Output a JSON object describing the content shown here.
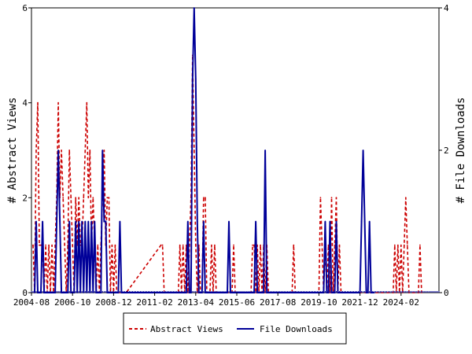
{
  "chart_data": {
    "type": "line",
    "title": "",
    "x_tick_labels": [
      "2004-08",
      "2006-10",
      "2008-12",
      "2011-02",
      "2013-04",
      "2015-06",
      "2017-08",
      "2019-10",
      "2021-12",
      "2024-02"
    ],
    "x_range": [
      "2004-08",
      "2026-02"
    ],
    "y_left": {
      "label": "# Abstract Views",
      "ticks": [
        "0",
        "2",
        "4",
        "6"
      ],
      "range": [
        0,
        6
      ]
    },
    "y_right": {
      "label": "# File Downloads",
      "ticks": [
        "0",
        "2",
        "4"
      ],
      "range": [
        0,
        4
      ]
    },
    "grid": false,
    "legend_position": "bottom",
    "series": [
      {
        "name": "Abstract Views",
        "axis": "left",
        "color": "#cc0000",
        "style": "dashed",
        "points": [
          [
            "2004-09",
            1
          ],
          [
            "2004-10",
            0
          ],
          [
            "2004-11",
            3
          ],
          [
            "2004-12",
            4
          ],
          [
            "2005-01",
            1
          ],
          [
            "2005-02",
            1
          ],
          [
            "2005-03",
            1
          ],
          [
            "2005-04",
            0
          ],
          [
            "2005-05",
            1
          ],
          [
            "2005-06",
            0
          ],
          [
            "2005-07",
            1
          ],
          [
            "2005-08",
            0
          ],
          [
            "2005-09",
            1
          ],
          [
            "2005-10",
            0
          ],
          [
            "2005-11",
            1
          ],
          [
            "2005-12",
            2
          ],
          [
            "2006-01",
            4
          ],
          [
            "2006-02",
            2
          ],
          [
            "2006-03",
            3
          ],
          [
            "2006-04",
            2
          ],
          [
            "2006-05",
            1
          ],
          [
            "2006-06",
            0
          ],
          [
            "2006-07",
            1
          ],
          [
            "2006-08",
            3
          ],
          [
            "2006-09",
            2
          ],
          [
            "2006-10",
            1
          ],
          [
            "2006-11",
            0
          ],
          [
            "2006-12",
            2
          ],
          [
            "2007-01",
            1
          ],
          [
            "2007-02",
            2
          ],
          [
            "2007-03",
            1
          ],
          [
            "2007-04",
            1
          ],
          [
            "2007-05",
            2
          ],
          [
            "2007-06",
            3
          ],
          [
            "2007-07",
            4
          ],
          [
            "2007-08",
            2
          ],
          [
            "2007-09",
            3
          ],
          [
            "2007-10",
            1
          ],
          [
            "2007-11",
            2
          ],
          [
            "2007-12",
            1
          ],
          [
            "2008-01",
            0
          ],
          [
            "2008-02",
            1
          ],
          [
            "2008-03",
            0
          ],
          [
            "2008-04",
            1
          ],
          [
            "2008-05",
            2
          ],
          [
            "2008-06",
            3
          ],
          [
            "2008-07",
            1
          ],
          [
            "2008-08",
            2
          ],
          [
            "2008-09",
            2
          ],
          [
            "2008-10",
            0
          ],
          [
            "2008-11",
            1
          ],
          [
            "2008-12",
            0
          ],
          [
            "2009-01",
            1
          ],
          [
            "2009-02",
            0
          ],
          [
            "2009-03",
            0
          ],
          [
            "2009-04",
            0
          ],
          [
            "2009-05",
            0
          ],
          [
            "2009-06",
            0
          ],
          [
            "2009-07",
            0
          ],
          [
            "2009-08",
            0
          ],
          [
            "2011-06",
            1
          ],
          [
            "2011-07",
            1
          ],
          [
            "2011-08",
            0
          ],
          [
            "2012-05",
            0
          ],
          [
            "2012-06",
            1
          ],
          [
            "2012-07",
            0
          ],
          [
            "2012-08",
            1
          ],
          [
            "2012-09",
            0
          ],
          [
            "2012-10",
            1
          ],
          [
            "2012-11",
            0
          ],
          [
            "2012-12",
            1
          ],
          [
            "2013-01",
            2
          ],
          [
            "2013-02",
            5
          ],
          [
            "2013-03",
            3
          ],
          [
            "2013-04",
            1
          ],
          [
            "2013-05",
            0
          ],
          [
            "2013-06",
            1
          ],
          [
            "2013-07",
            0
          ],
          [
            "2013-08",
            0
          ],
          [
            "2013-09",
            2
          ],
          [
            "2013-10",
            2
          ],
          [
            "2013-11",
            0
          ],
          [
            "2014-01",
            0
          ],
          [
            "2014-02",
            1
          ],
          [
            "2014-03",
            0
          ],
          [
            "2014-04",
            1
          ],
          [
            "2014-05",
            0
          ],
          [
            "2015-03",
            0
          ],
          [
            "2015-04",
            1
          ],
          [
            "2015-05",
            0
          ],
          [
            "2016-03",
            0
          ],
          [
            "2016-04",
            1
          ],
          [
            "2016-05",
            1
          ],
          [
            "2016-06",
            0
          ],
          [
            "2016-07",
            1
          ],
          [
            "2016-08",
            0
          ],
          [
            "2016-09",
            1
          ],
          [
            "2016-10",
            0
          ],
          [
            "2016-11",
            1
          ],
          [
            "2016-12",
            0
          ],
          [
            "2017-01",
            1
          ],
          [
            "2017-02",
            0
          ],
          [
            "2018-05",
            0
          ],
          [
            "2018-06",
            1
          ],
          [
            "2018-07",
            0
          ],
          [
            "2019-10",
            0
          ],
          [
            "2019-11",
            2
          ],
          [
            "2019-12",
            1
          ],
          [
            "2020-01",
            0
          ],
          [
            "2020-02",
            1
          ],
          [
            "2020-03",
            0
          ],
          [
            "2020-04",
            1
          ],
          [
            "2020-05",
            0
          ],
          [
            "2020-06",
            2
          ],
          [
            "2020-07",
            0
          ],
          [
            "2020-08",
            1
          ],
          [
            "2020-09",
            2
          ],
          [
            "2020-10",
            0
          ],
          [
            "2020-11",
            1
          ],
          [
            "2020-12",
            0
          ],
          [
            "2023-09",
            0
          ],
          [
            "2023-10",
            1
          ],
          [
            "2023-11",
            0
          ],
          [
            "2023-12",
            1
          ],
          [
            "2024-01",
            0
          ],
          [
            "2024-02",
            1
          ],
          [
            "2024-03",
            0
          ],
          [
            "2024-04",
            1
          ],
          [
            "2024-05",
            2
          ],
          [
            "2024-06",
            1
          ],
          [
            "2024-07",
            0
          ],
          [
            "2025-01",
            0
          ],
          [
            "2025-02",
            1
          ],
          [
            "2025-03",
            0
          ]
        ]
      },
      {
        "name": "File Downloads",
        "axis": "right",
        "color": "#000099",
        "style": "solid",
        "points": [
          [
            "2004-10",
            0
          ],
          [
            "2004-11",
            1
          ],
          [
            "2004-12",
            0
          ],
          [
            "2005-01",
            0
          ],
          [
            "2005-02",
            0
          ],
          [
            "2005-03",
            1
          ],
          [
            "2005-04",
            0
          ],
          [
            "2005-05",
            0
          ],
          [
            "2005-06",
            0
          ],
          [
            "2005-07",
            0
          ],
          [
            "2005-08",
            0
          ],
          [
            "2005-09",
            0
          ],
          [
            "2005-10",
            0
          ],
          [
            "2005-11",
            0
          ],
          [
            "2005-12",
            1
          ],
          [
            "2006-01",
            2
          ],
          [
            "2006-02",
            1
          ],
          [
            "2006-03",
            0
          ],
          [
            "2006-04",
            0
          ],
          [
            "2006-05",
            0
          ],
          [
            "2006-06",
            0
          ],
          [
            "2006-07",
            0
          ],
          [
            "2006-08",
            1
          ],
          [
            "2006-09",
            0
          ],
          [
            "2006-10",
            0
          ],
          [
            "2006-11",
            0
          ],
          [
            "2006-12",
            1
          ],
          [
            "2007-01",
            0
          ],
          [
            "2007-02",
            1
          ],
          [
            "2007-03",
            0
          ],
          [
            "2007-04",
            1
          ],
          [
            "2007-05",
            0
          ],
          [
            "2007-06",
            1
          ],
          [
            "2007-07",
            0
          ],
          [
            "2007-08",
            1
          ],
          [
            "2007-09",
            0
          ],
          [
            "2007-10",
            1
          ],
          [
            "2007-11",
            0
          ],
          [
            "2007-12",
            1
          ],
          [
            "2008-01",
            0
          ],
          [
            "2008-02",
            0
          ],
          [
            "2008-03",
            0
          ],
          [
            "2008-04",
            0
          ],
          [
            "2008-05",
            2
          ],
          [
            "2008-06",
            1
          ],
          [
            "2008-07",
            1
          ],
          [
            "2008-08",
            0
          ],
          [
            "2008-09",
            0
          ],
          [
            "2008-10",
            0
          ],
          [
            "2008-11",
            0
          ],
          [
            "2008-12",
            0
          ],
          [
            "2009-01",
            0
          ],
          [
            "2009-02",
            0
          ],
          [
            "2009-03",
            0
          ],
          [
            "2009-04",
            1
          ],
          [
            "2009-05",
            0
          ],
          [
            "2009-06",
            0
          ],
          [
            "2009-07",
            0
          ],
          [
            "2009-08",
            0
          ],
          [
            "2009-09",
            0
          ],
          [
            "2012-10",
            0
          ],
          [
            "2012-11",
            1
          ],
          [
            "2012-12",
            0
          ],
          [
            "2013-01",
            0
          ],
          [
            "2013-02",
            3
          ],
          [
            "2013-03",
            4
          ],
          [
            "2013-04",
            3
          ],
          [
            "2013-05",
            1
          ],
          [
            "2013-06",
            0
          ],
          [
            "2013-07",
            0
          ],
          [
            "2013-08",
            0
          ],
          [
            "2013-09",
            1
          ],
          [
            "2013-10",
            0
          ],
          [
            "2013-11",
            0
          ],
          [
            "2014-01",
            0
          ],
          [
            "2014-02",
            0
          ],
          [
            "2014-03",
            0
          ],
          [
            "2014-04",
            0
          ],
          [
            "2014-05",
            0
          ],
          [
            "2014-06",
            0
          ],
          [
            "2014-12",
            0
          ],
          [
            "2015-01",
            1
          ],
          [
            "2015-02",
            0
          ],
          [
            "2015-03",
            0
          ],
          [
            "2015-04",
            0
          ],
          [
            "2015-05",
            0
          ],
          [
            "2015-06",
            0
          ],
          [
            "2015-07",
            0
          ],
          [
            "2015-08",
            0
          ],
          [
            "2015-09",
            0
          ],
          [
            "2016-05",
            0
          ],
          [
            "2016-06",
            1
          ],
          [
            "2016-07",
            0
          ],
          [
            "2016-08",
            0
          ],
          [
            "2016-09",
            0
          ],
          [
            "2016-10",
            0
          ],
          [
            "2016-11",
            0
          ],
          [
            "2016-12",
            2
          ],
          [
            "2017-01",
            0
          ],
          [
            "2017-02",
            0
          ],
          [
            "2017-03",
            0
          ],
          [
            "2017-04",
            0
          ],
          [
            "2017-05",
            0
          ],
          [
            "2017-06",
            0
          ],
          [
            "2019-12",
            0
          ],
          [
            "2020-01",
            0
          ],
          [
            "2020-02",
            1
          ],
          [
            "2020-03",
            0
          ],
          [
            "2020-04",
            0
          ],
          [
            "2020-05",
            1
          ],
          [
            "2020-06",
            0
          ],
          [
            "2020-07",
            0
          ],
          [
            "2020-08",
            0
          ],
          [
            "2020-09",
            1
          ],
          [
            "2020-10",
            0
          ],
          [
            "2020-11",
            0
          ],
          [
            "2020-12",
            0
          ],
          [
            "2021-01",
            0
          ],
          [
            "2021-02",
            0
          ],
          [
            "2021-03",
            0
          ],
          [
            "2021-04",
            0
          ],
          [
            "2021-05",
            0
          ],
          [
            "2021-06",
            0
          ],
          [
            "2021-07",
            0
          ],
          [
            "2021-08",
            0
          ],
          [
            "2021-09",
            0
          ],
          [
            "2021-10",
            0
          ],
          [
            "2021-11",
            0
          ],
          [
            "2021-12",
            0
          ],
          [
            "2022-01",
            1
          ],
          [
            "2022-02",
            2
          ],
          [
            "2022-03",
            1
          ],
          [
            "2022-04",
            0
          ],
          [
            "2022-05",
            0
          ],
          [
            "2022-06",
            1
          ],
          [
            "2022-07",
            0
          ],
          [
            "2022-08",
            0
          ],
          [
            "2022-09",
            0
          ]
        ]
      }
    ],
    "legend": [
      "Abstract Views",
      "File Downloads"
    ]
  }
}
